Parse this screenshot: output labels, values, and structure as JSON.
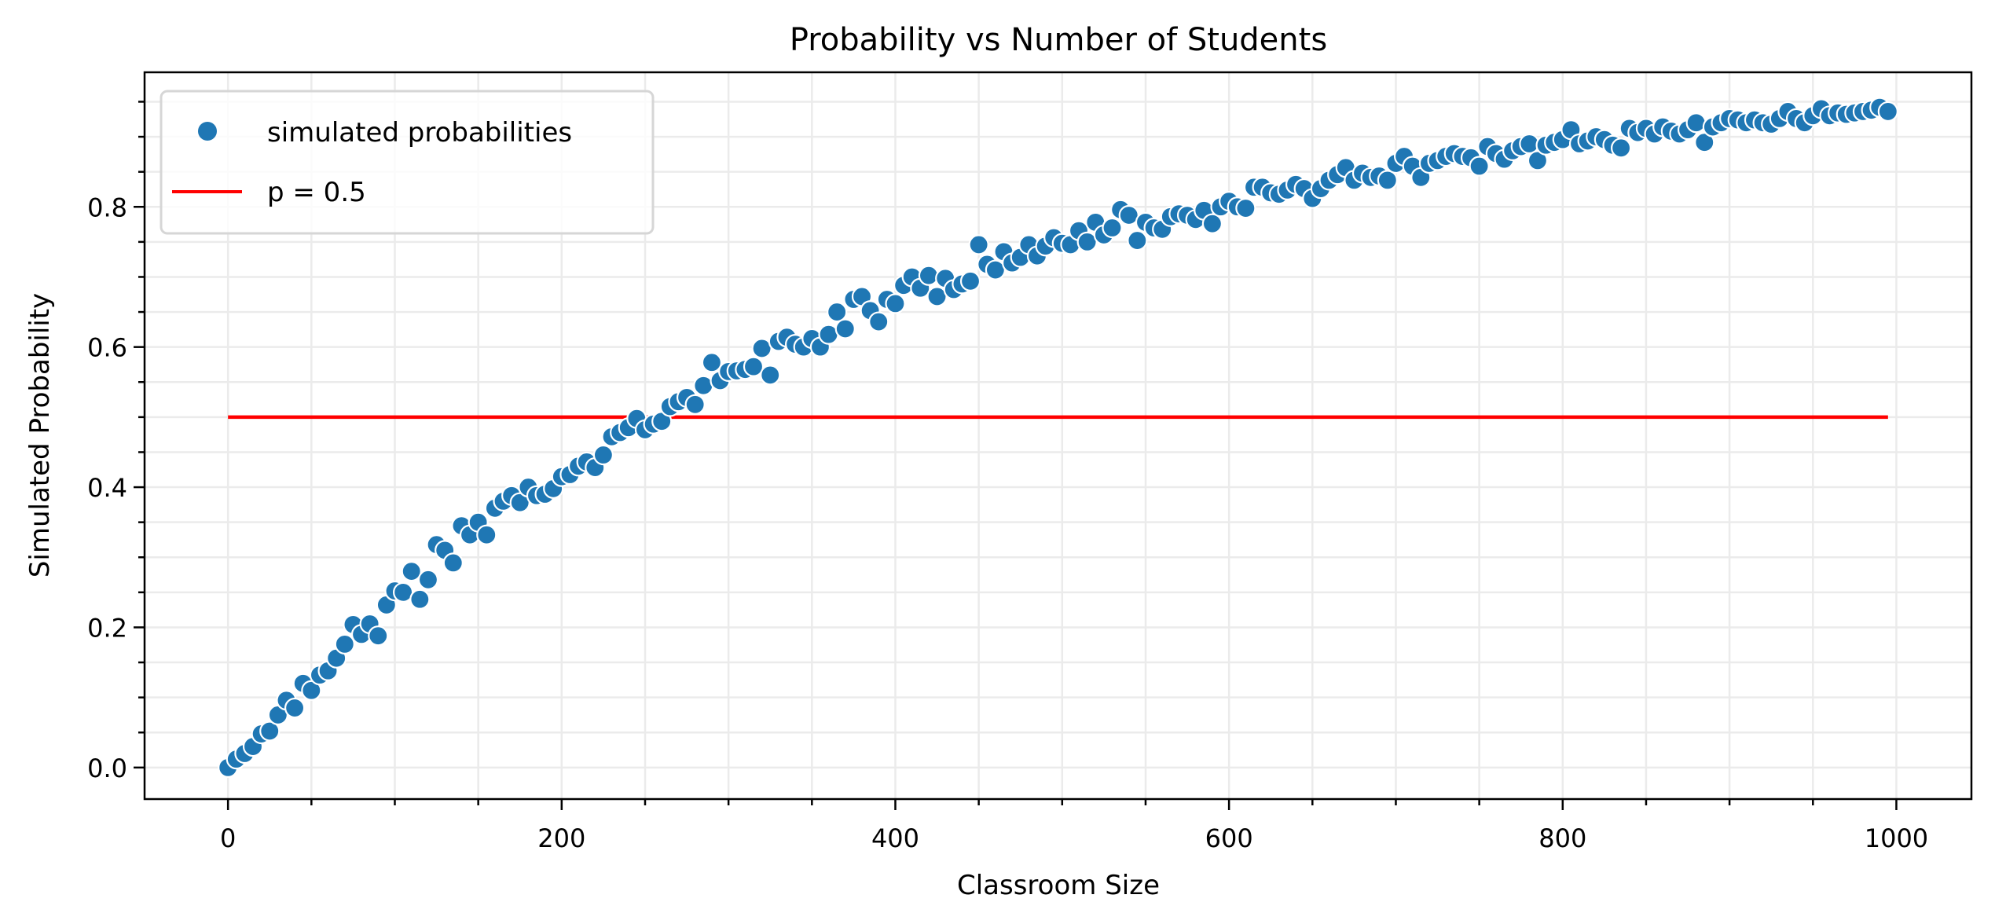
{
  "chart_data": {
    "type": "scatter",
    "title": "Probability vs Number of Students",
    "xlabel": "Classroom Size",
    "ylabel": "Simulated Probability",
    "xlim": [
      -50,
      1045
    ],
    "ylim": [
      -0.045,
      0.992
    ],
    "xticks": [
      0,
      200,
      400,
      600,
      800,
      1000
    ],
    "xtick_labels": [
      "0",
      "200",
      "400",
      "600",
      "800",
      "1000"
    ],
    "x_minor_step": 50,
    "yticks": [
      0.0,
      0.2,
      0.4,
      0.6,
      0.8
    ],
    "ytick_labels": [
      "0.0",
      "0.2",
      "0.4",
      "0.6",
      "0.8"
    ],
    "y_minor_step": 0.05,
    "grid": true,
    "legend_position": "upper left",
    "series": [
      {
        "name": "simulated probabilities",
        "kind": "scatter",
        "color": "#1f77b4",
        "x_start": 0,
        "x_step": 5,
        "values": [
          0.0,
          0.012,
          0.02,
          0.03,
          0.048,
          0.052,
          0.075,
          0.096,
          0.085,
          0.12,
          0.11,
          0.132,
          0.138,
          0.156,
          0.176,
          0.204,
          0.19,
          0.205,
          0.188,
          0.232,
          0.252,
          0.25,
          0.28,
          0.24,
          0.268,
          0.318,
          0.31,
          0.292,
          0.345,
          0.332,
          0.35,
          0.332,
          0.37,
          0.38,
          0.388,
          0.378,
          0.4,
          0.388,
          0.39,
          0.398,
          0.415,
          0.418,
          0.43,
          0.436,
          0.428,
          0.446,
          0.472,
          0.478,
          0.485,
          0.498,
          0.482,
          0.49,
          0.494,
          0.515,
          0.522,
          0.528,
          0.518,
          0.545,
          0.578,
          0.552,
          0.565,
          0.566,
          0.568,
          0.572,
          0.598,
          0.56,
          0.608,
          0.614,
          0.604,
          0.6,
          0.612,
          0.6,
          0.618,
          0.65,
          0.626,
          0.668,
          0.672,
          0.652,
          0.636,
          0.668,
          0.662,
          0.688,
          0.7,
          0.684,
          0.702,
          0.672,
          0.698,
          0.682,
          0.69,
          0.694,
          0.746,
          0.718,
          0.71,
          0.736,
          0.72,
          0.728,
          0.746,
          0.73,
          0.744,
          0.756,
          0.748,
          0.746,
          0.766,
          0.75,
          0.778,
          0.76,
          0.77,
          0.796,
          0.788,
          0.752,
          0.778,
          0.77,
          0.768,
          0.786,
          0.79,
          0.788,
          0.782,
          0.795,
          0.776,
          0.8,
          0.808,
          0.8,
          0.798,
          0.828,
          0.828,
          0.82,
          0.818,
          0.824,
          0.832,
          0.826,
          0.812,
          0.826,
          0.838,
          0.846,
          0.856,
          0.838,
          0.848,
          0.842,
          0.844,
          0.838,
          0.862,
          0.872,
          0.858,
          0.842,
          0.862,
          0.866,
          0.872,
          0.876,
          0.872,
          0.87,
          0.858,
          0.886,
          0.876,
          0.868,
          0.88,
          0.886,
          0.89,
          0.866,
          0.888,
          0.892,
          0.896,
          0.91,
          0.89,
          0.894,
          0.9,
          0.896,
          0.888,
          0.884,
          0.912,
          0.906,
          0.912,
          0.904,
          0.914,
          0.908,
          0.904,
          0.91,
          0.92,
          0.892,
          0.914,
          0.92,
          0.926,
          0.924,
          0.92,
          0.924,
          0.92,
          0.918,
          0.926,
          0.936,
          0.926,
          0.92,
          0.93,
          0.94,
          0.93,
          0.934,
          0.932,
          0.934,
          0.936,
          0.938,
          0.942,
          0.936
        ]
      },
      {
        "name": "p = 0.5",
        "kind": "line",
        "color": "#ff0000",
        "x": [
          0,
          995
        ],
        "y": [
          0.5,
          0.5
        ]
      }
    ]
  },
  "legend": {
    "items": [
      {
        "label": "simulated probabilities",
        "kind": "marker",
        "color": "#1f77b4"
      },
      {
        "label": "p = 0.5",
        "kind": "line",
        "color": "#ff0000"
      }
    ]
  },
  "colors": {
    "grid": "#ebebeb",
    "axis": "#000000",
    "legend_border": "#d6d6d6"
  }
}
